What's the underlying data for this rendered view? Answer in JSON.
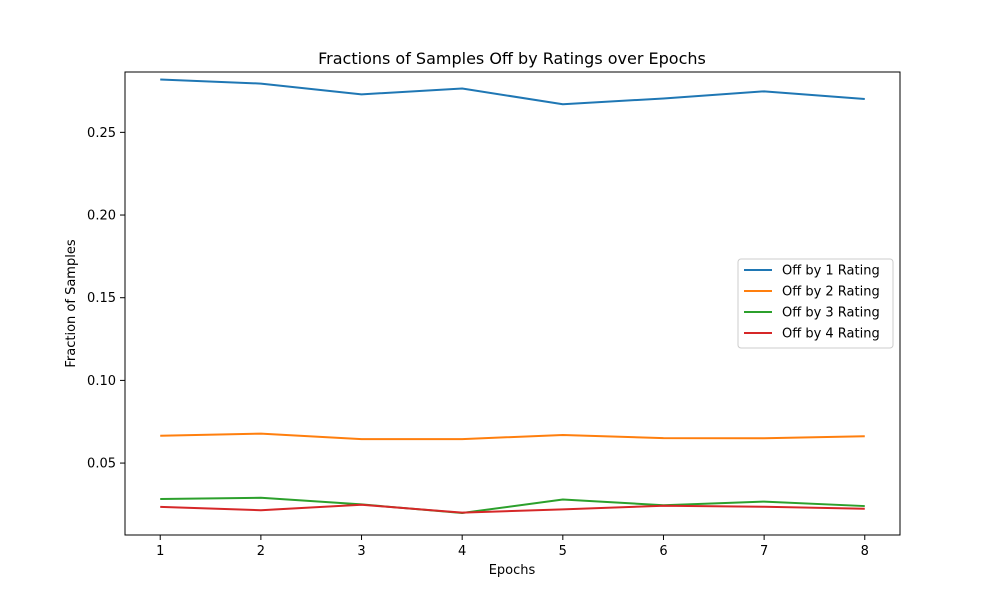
{
  "chart_data": {
    "type": "line",
    "title": "Fractions of Samples Off by Ratings over Epochs",
    "xlabel": "Epochs",
    "ylabel": "Fraction of Samples",
    "x": [
      1,
      2,
      3,
      4,
      5,
      6,
      7,
      8
    ],
    "xticks": [
      "1",
      "2",
      "3",
      "4",
      "5",
      "6",
      "7",
      "8"
    ],
    "yticks": [
      "0.05",
      "0.10",
      "0.15",
      "0.20",
      "0.25"
    ],
    "ytick_values": [
      0.05,
      0.1,
      0.15,
      0.2,
      0.25
    ],
    "xlim": [
      0.65,
      8.35
    ],
    "ylim": [
      0.0065,
      0.2865
    ],
    "grid": false,
    "legend_position": "center-right",
    "series": [
      {
        "name": "Off by 1 Rating",
        "color": "#1f77b4",
        "values": [
          0.282,
          0.2795,
          0.273,
          0.2765,
          0.267,
          0.2705,
          0.2748,
          0.2702
        ]
      },
      {
        "name": "Off by 2 Rating",
        "color": "#ff7f0e",
        "values": [
          0.0665,
          0.0678,
          0.0645,
          0.0645,
          0.067,
          0.0651,
          0.065,
          0.0662
        ]
      },
      {
        "name": "Off by 3 Rating",
        "color": "#2ca02c",
        "values": [
          0.0283,
          0.029,
          0.025,
          0.0198,
          0.028,
          0.0245,
          0.0267,
          0.024
        ]
      },
      {
        "name": "Off by 4 Rating",
        "color": "#d62728",
        "values": [
          0.0235,
          0.0215,
          0.0248,
          0.02,
          0.022,
          0.0242,
          0.0236,
          0.0224
        ]
      }
    ]
  }
}
